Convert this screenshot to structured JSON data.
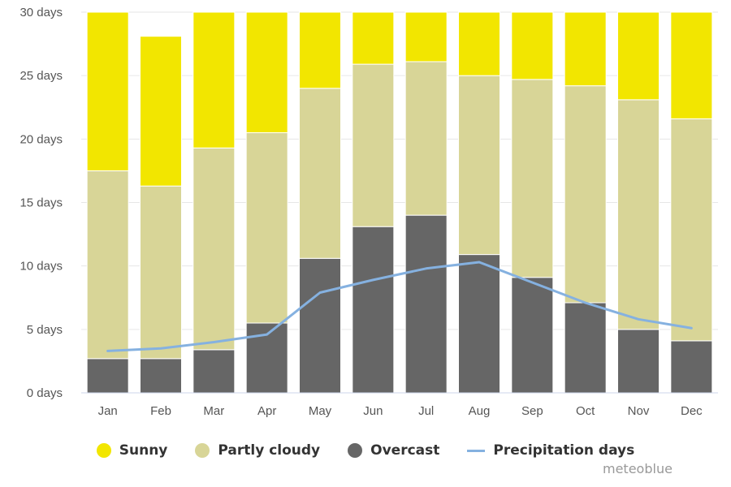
{
  "chart_data": {
    "type": "bar",
    "stacked": true,
    "categories": [
      "Jan",
      "Feb",
      "Mar",
      "Apr",
      "May",
      "Jun",
      "Jul",
      "Aug",
      "Sep",
      "Oct",
      "Nov",
      "Dec"
    ],
    "series": [
      {
        "name": "Overcast",
        "color": "#666666",
        "values": [
          2.7,
          2.7,
          3.4,
          5.5,
          10.6,
          13.1,
          14.0,
          10.9,
          9.1,
          7.1,
          5.0,
          4.1
        ]
      },
      {
        "name": "Partly cloudy",
        "color": "#d8d597",
        "values": [
          14.8,
          13.6,
          15.9,
          15.0,
          13.4,
          12.8,
          12.1,
          14.1,
          15.6,
          17.1,
          18.1,
          17.5
        ]
      },
      {
        "name": "Sunny",
        "color": "#f2e600",
        "values": [
          12.5,
          11.8,
          10.7,
          9.5,
          6.0,
          4.1,
          3.9,
          5.0,
          5.3,
          5.8,
          6.9,
          8.4
        ]
      }
    ],
    "line_series": {
      "name": "Precipitation days",
      "color": "#85b1e0",
      "type": "line",
      "values": [
        3.3,
        3.5,
        4.0,
        4.6,
        7.9,
        8.9,
        9.8,
        10.3,
        8.7,
        7.1,
        5.8,
        5.1
      ]
    },
    "ylim": [
      0,
      30
    ],
    "yticks": [
      0,
      5,
      10,
      15,
      20,
      25,
      30
    ],
    "ytick_suffix": " days",
    "grid": true,
    "legend_position": "bottom-center"
  },
  "legend": {
    "sunny": "Sunny",
    "partly_cloudy": "Partly cloudy",
    "overcast": "Overcast",
    "precipitation": "Precipitation days"
  },
  "colors": {
    "sunny": "#f2e600",
    "partly_cloudy": "#d8d597",
    "overcast": "#666666",
    "precipitation": "#85b1e0"
  },
  "watermark": "meteoblue"
}
